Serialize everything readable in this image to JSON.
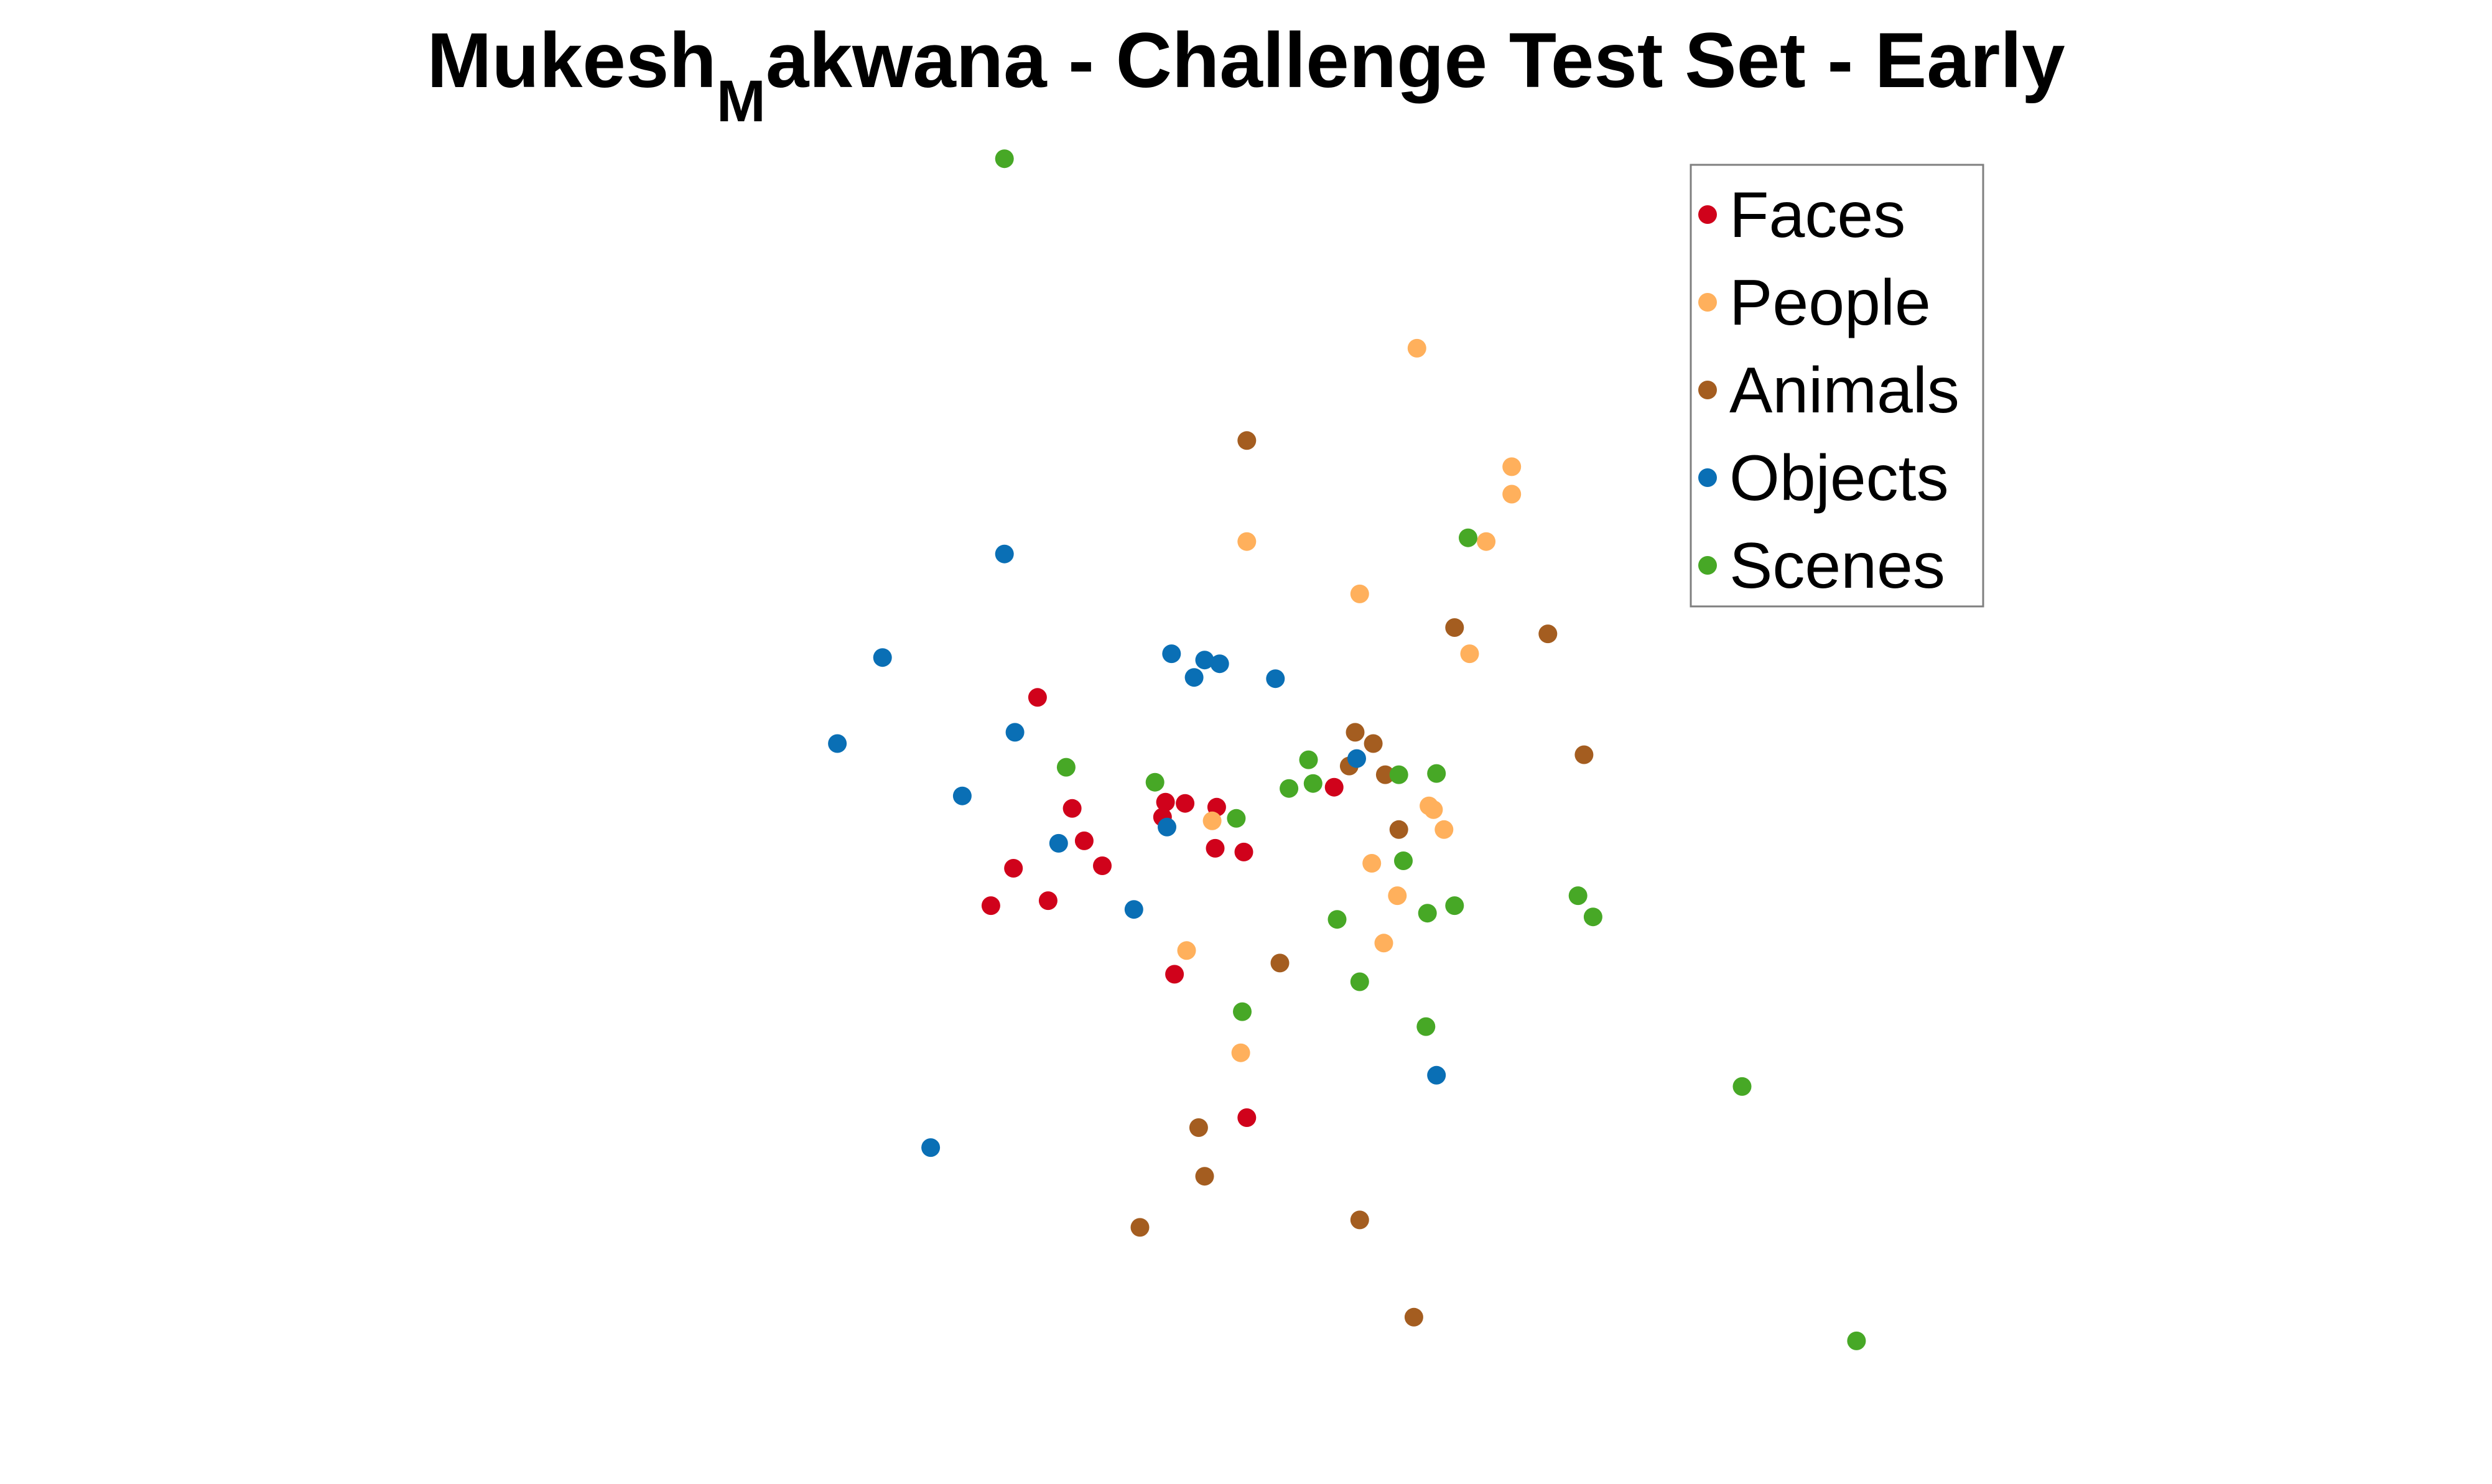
{
  "chart_data": {
    "type": "scatter",
    "title": "Mukesh_Makwana - Challenge Test Set - Early",
    "title_parts": {
      "before": "Mukesh",
      "subscript": "M",
      "after": "akwana - Challenge Test Set - Early"
    },
    "xlabel": "",
    "ylabel": "",
    "axes_visible": false,
    "grid": false,
    "xlim": [
      0,
      100
    ],
    "ylim": [
      0,
      100
    ],
    "legend_position": "top-right",
    "series": [
      {
        "name": "Faces",
        "color": "#d0021b",
        "points": [
          [
            41.5,
            20.1
          ],
          [
            36.7,
            31.6
          ],
          [
            28.3,
            37.5
          ],
          [
            26.0,
            40.1
          ],
          [
            31.9,
            40.3
          ],
          [
            30.7,
            42.3
          ],
          [
            41.3,
            41.4
          ],
          [
            35.9,
            44.2
          ],
          [
            36.1,
            45.4
          ],
          [
            37.4,
            45.3
          ],
          [
            39.5,
            45.0
          ],
          [
            39.4,
            41.7
          ],
          [
            47.3,
            46.6
          ],
          [
            24.5,
            37.1
          ],
          [
            27.6,
            53.8
          ],
          [
            29.9,
            44.9
          ]
        ]
      },
      {
        "name": "People",
        "color": "#ffb05c",
        "points": [
          [
            37.5,
            33.5
          ],
          [
            54.6,
            43.2
          ],
          [
            53.6,
            45.1
          ],
          [
            49.0,
            62.1
          ],
          [
            56.3,
            57.3
          ],
          [
            57.4,
            66.3
          ],
          [
            59.1,
            72.3
          ],
          [
            52.8,
            81.8
          ],
          [
            59.1,
            70.1
          ],
          [
            53.9,
            44.8
          ],
          [
            49.8,
            40.5
          ],
          [
            41.5,
            66.3
          ],
          [
            51.5,
            37.9
          ],
          [
            50.6,
            34.1
          ],
          [
            41.1,
            25.3
          ],
          [
            39.2,
            43.9
          ]
        ]
      },
      {
        "name": "Animals",
        "color": "#a45d20",
        "points": [
          [
            38.7,
            15.4
          ],
          [
            34.4,
            11.3
          ],
          [
            38.3,
            19.3
          ],
          [
            52.6,
            4.1
          ],
          [
            49.0,
            11.9
          ],
          [
            43.7,
            32.5
          ],
          [
            50.7,
            47.6
          ],
          [
            48.3,
            48.3
          ],
          [
            51.6,
            43.2
          ],
          [
            49.9,
            50.1
          ],
          [
            61.5,
            58.9
          ],
          [
            63.9,
            49.2
          ],
          [
            74.8,
            62.4
          ],
          [
            41.5,
            74.4
          ],
          [
            55.3,
            59.4
          ],
          [
            48.7,
            51.0
          ]
        ]
      },
      {
        "name": "Objects",
        "color": "#0a6fb5",
        "points": [
          [
            20.5,
            17.7
          ],
          [
            14.3,
            50.1
          ],
          [
            17.3,
            57.0
          ],
          [
            22.6,
            45.9
          ],
          [
            26.1,
            51.0
          ],
          [
            25.4,
            65.3
          ],
          [
            29.0,
            42.1
          ],
          [
            34.0,
            36.8
          ],
          [
            36.2,
            43.4
          ],
          [
            39.7,
            56.5
          ],
          [
            38.0,
            55.4
          ],
          [
            43.4,
            55.3
          ],
          [
            48.8,
            48.9
          ],
          [
            36.5,
            57.3
          ],
          [
            38.7,
            56.8
          ],
          [
            54.1,
            23.5
          ]
        ]
      },
      {
        "name": "Scenes",
        "color": "#47a826",
        "points": [
          [
            82.0,
            2.2
          ],
          [
            74.4,
            22.6
          ],
          [
            53.4,
            27.4
          ],
          [
            41.2,
            28.6
          ],
          [
            49.0,
            31.0
          ],
          [
            47.5,
            36.0
          ],
          [
            53.5,
            36.5
          ],
          [
            55.3,
            37.1
          ],
          [
            51.9,
            40.7
          ],
          [
            44.3,
            46.5
          ],
          [
            35.4,
            47.0
          ],
          [
            51.6,
            47.6
          ],
          [
            45.6,
            48.8
          ],
          [
            29.5,
            48.2
          ],
          [
            45.9,
            46.9
          ],
          [
            54.1,
            47.7
          ],
          [
            56.2,
            66.6
          ],
          [
            63.5,
            37.9
          ],
          [
            64.5,
            36.2
          ],
          [
            25.4,
            97.0
          ],
          [
            40.8,
            44.1
          ]
        ]
      }
    ]
  }
}
